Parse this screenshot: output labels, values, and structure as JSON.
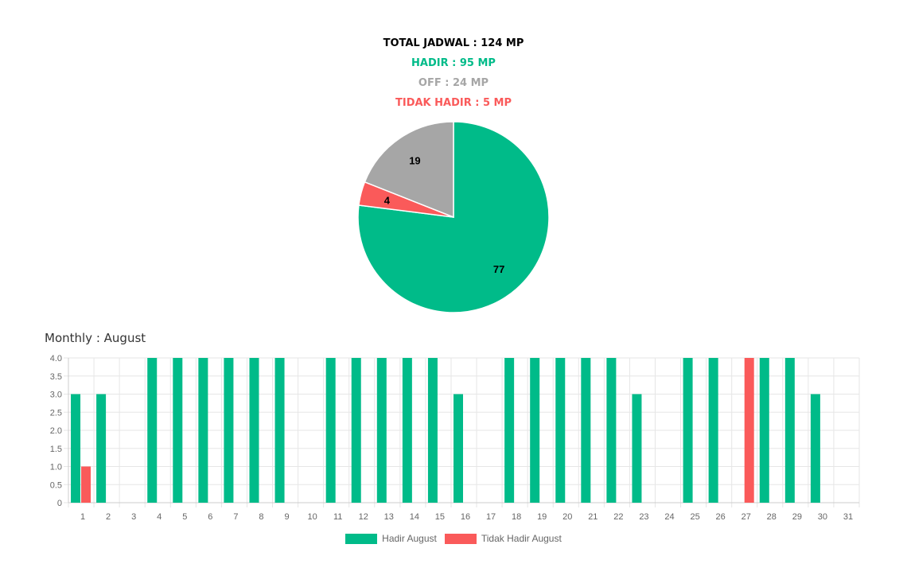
{
  "summary": {
    "total": "TOTAL JADWAL : 124 MP",
    "hadir": "HADIR : 95 MP",
    "off": "OFF : 24 MP",
    "tidak_hadir": "TIDAK HADIR : 5 MP"
  },
  "colors": {
    "hadir": "#00bb89",
    "off": "#a6a6a6",
    "tidak_hadir": "#fa5a5a",
    "total": "#000000",
    "grid": "#e6e6e6",
    "tick": "#666666"
  },
  "monthly_title": "Monthly : August",
  "chart_data": [
    {
      "type": "pie",
      "labels": [
        "Hadir",
        "Tidak Hadir",
        "Off"
      ],
      "values": [
        77,
        4,
        19
      ],
      "colors": [
        "#00bb89",
        "#fa5a5a",
        "#a6a6a6"
      ],
      "data_labels": [
        "77",
        "4",
        "19"
      ]
    },
    {
      "type": "bar",
      "title": "Monthly : August",
      "categories": [
        "1",
        "2",
        "3",
        "4",
        "5",
        "6",
        "7",
        "8",
        "9",
        "10",
        "11",
        "12",
        "13",
        "14",
        "15",
        "16",
        "17",
        "18",
        "19",
        "20",
        "21",
        "22",
        "23",
        "24",
        "25",
        "26",
        "27",
        "28",
        "29",
        "30",
        "31"
      ],
      "series": [
        {
          "name": "Hadir August",
          "color": "#00bb89",
          "values": [
            3,
            3,
            0,
            4,
            4,
            4,
            4,
            4,
            4,
            0,
            4,
            4,
            4,
            4,
            4,
            3,
            0,
            4,
            4,
            4,
            4,
            4,
            3,
            0,
            4,
            4,
            0,
            4,
            4,
            3,
            0
          ]
        },
        {
          "name": "Tidak Hadir August",
          "color": "#fa5a5a",
          "values": [
            1,
            0,
            0,
            0,
            0,
            0,
            0,
            0,
            0,
            0,
            0,
            0,
            0,
            0,
            0,
            0,
            0,
            0,
            0,
            0,
            0,
            0,
            0,
            0,
            0,
            0,
            4,
            0,
            0,
            0,
            0
          ]
        }
      ],
      "ylim": [
        0,
        4
      ],
      "yticks": [
        "0",
        "0.5",
        "1.0",
        "1.5",
        "2.0",
        "2.5",
        "3.0",
        "3.5",
        "4.0"
      ],
      "legend": "bottom",
      "grid": true
    }
  ]
}
